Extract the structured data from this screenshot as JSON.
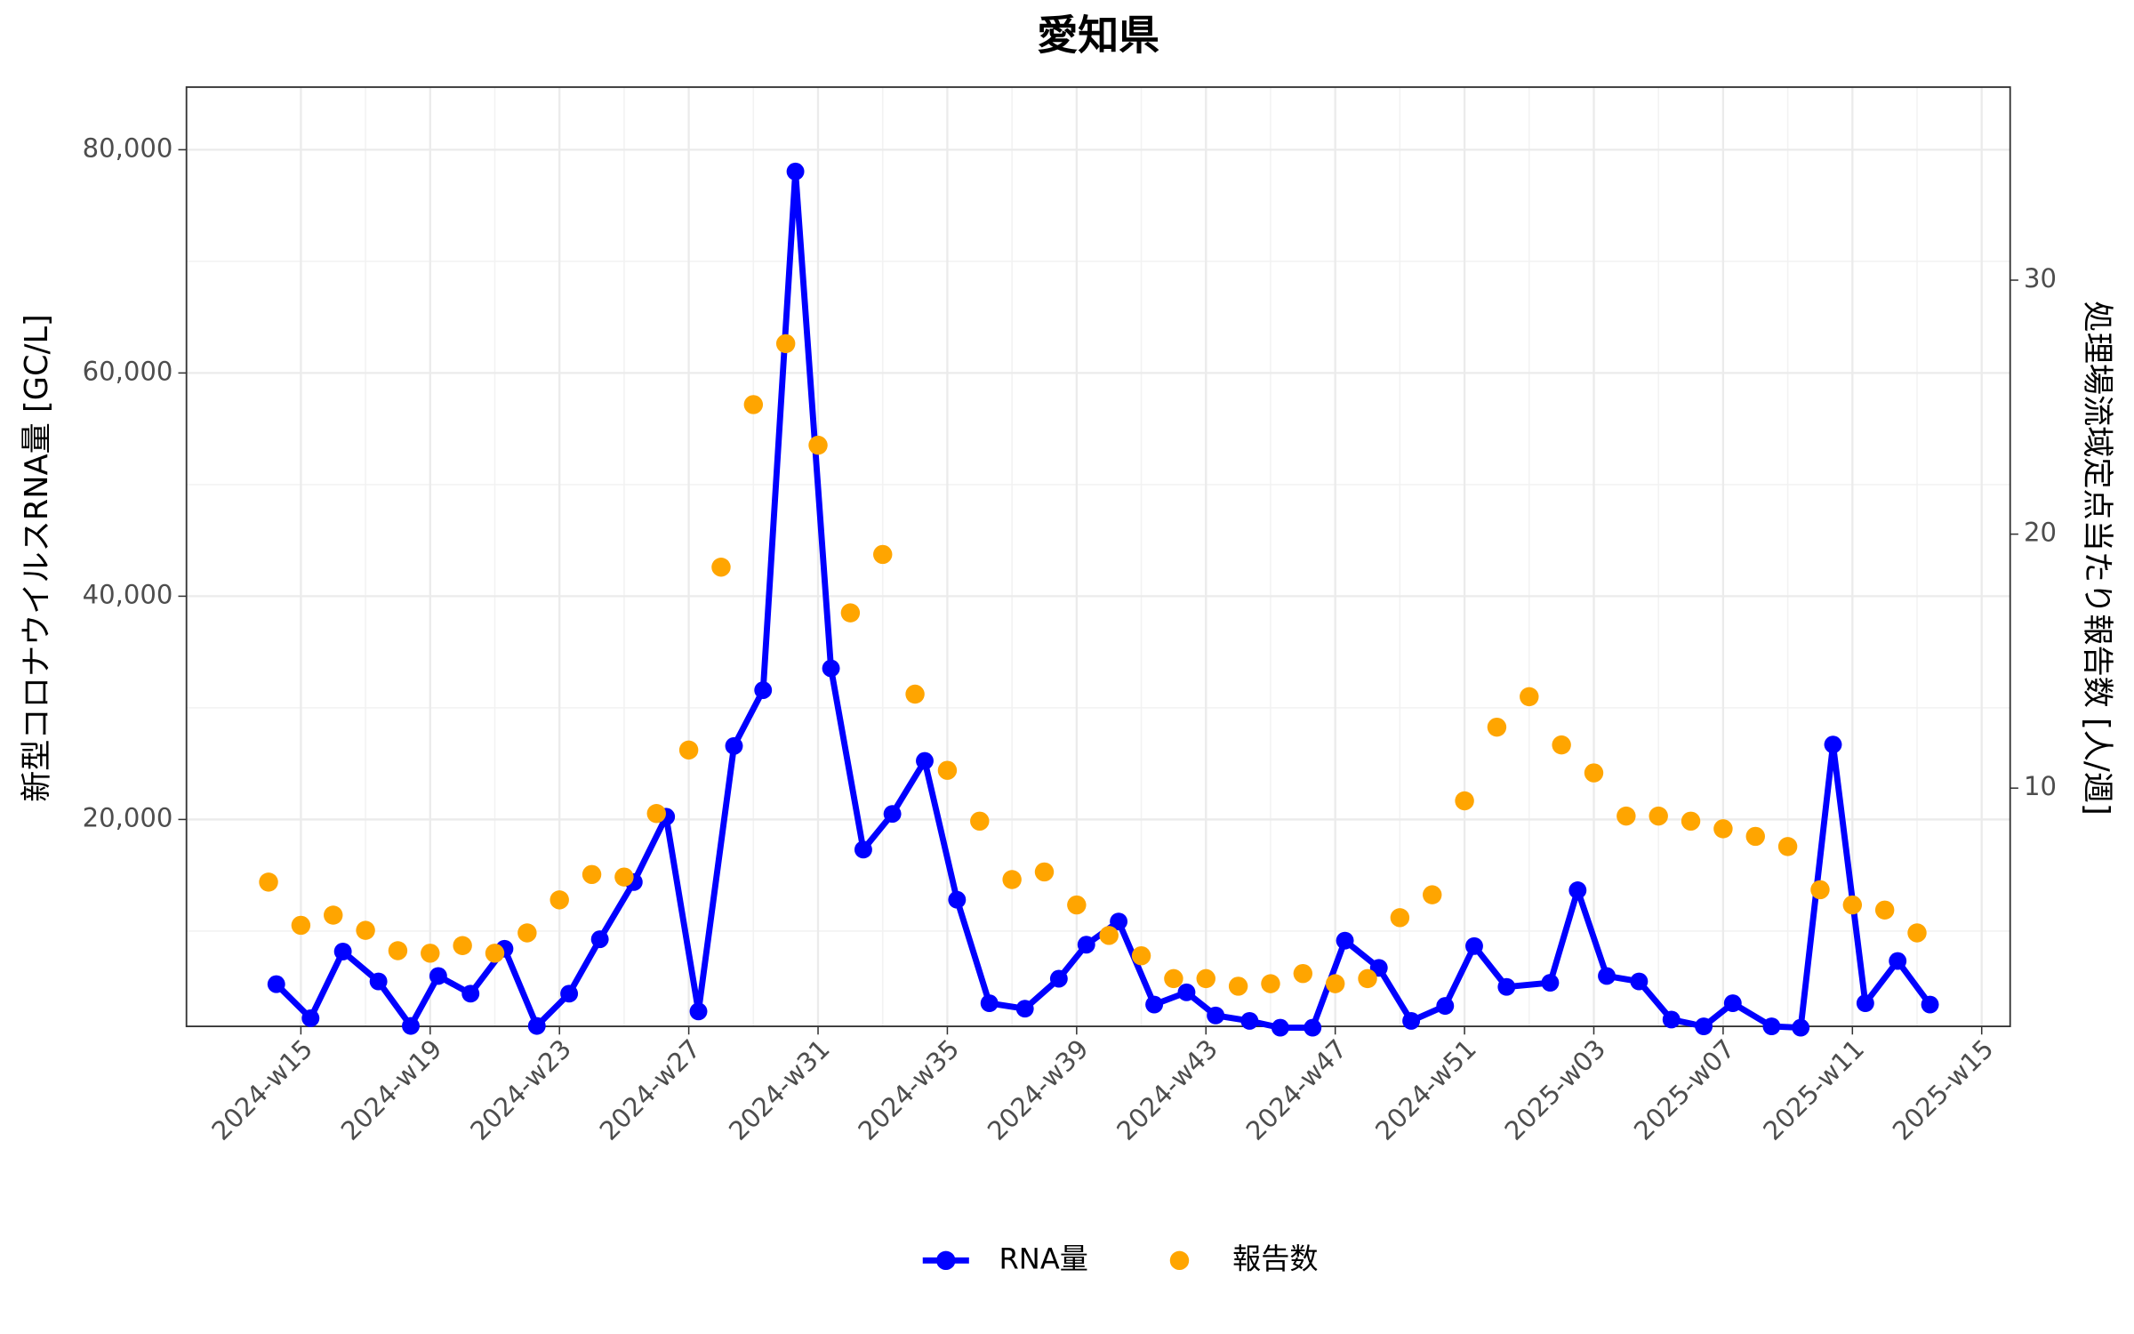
{
  "chart_data": {
    "type": "line",
    "title": "愛知県",
    "y_label": "新型コロナウイルスRNA量 [GC/L]",
    "y2_label": "処理場流域定点当たり報告数 [人/週]",
    "xlim": [
      11.46,
      67.88
    ],
    "xticks": [
      {
        "value": 15,
        "label": "2024-w15"
      },
      {
        "value": 19,
        "label": "2024-w19"
      },
      {
        "value": 23,
        "label": "2024-w23"
      },
      {
        "value": 27,
        "label": "2024-w27"
      },
      {
        "value": 31,
        "label": "2024-w31"
      },
      {
        "value": 35,
        "label": "2024-w35"
      },
      {
        "value": 39,
        "label": "2024-w39"
      },
      {
        "value": 43,
        "label": "2024-w43"
      },
      {
        "value": 47,
        "label": "2024-w47"
      },
      {
        "value": 51,
        "label": "2024-w51"
      },
      {
        "value": 55,
        "label": "2025-w03"
      },
      {
        "value": 59,
        "label": "2025-w07"
      },
      {
        "value": 63,
        "label": "2025-w11"
      },
      {
        "value": 67,
        "label": "2025-w15"
      }
    ],
    "ylim": [
      1463,
      85610
    ],
    "yticks": [
      {
        "value": 20000,
        "label": "20,000"
      },
      {
        "value": 40000,
        "label": "40,000"
      },
      {
        "value": 60000,
        "label": "60,000"
      },
      {
        "value": 80000,
        "label": "80,000"
      }
    ],
    "y2lim": [
      0.62,
      37.6
    ],
    "y2ticks": [
      10,
      20,
      30
    ],
    "grid": true,
    "series": [
      {
        "name": "RNA量",
        "color": "#0000ff",
        "mode": "line",
        "x": [
          14.24,
          15.3,
          16.3,
          17.4,
          18.4,
          19.25,
          20.25,
          21.3,
          22.3,
          23.3,
          24.25,
          25.3,
          26.3,
          27.3,
          28.4,
          29.3,
          30.3,
          31.4,
          32.4,
          33.3,
          34.3,
          35.3,
          36.3,
          37.4,
          38.45,
          39.3,
          40.3,
          41.4,
          42.4,
          43.3,
          44.35,
          45.3,
          46.3,
          47.3,
          48.35,
          49.35,
          50.4,
          51.3,
          52.3,
          53.65,
          54.5,
          55.4,
          56.4,
          57.4,
          58.4,
          59.3,
          60.5,
          61.4,
          62.4,
          63.4,
          64.4,
          65.4
        ],
        "values": [
          5244,
          2195,
          8170,
          5488,
          1500,
          5976,
          4390,
          8415,
          1500,
          4390,
          9268,
          14390,
          20244,
          2800,
          26585,
          31585,
          78049,
          33537,
          17300,
          20500,
          25244,
          12805,
          3537,
          3049,
          5732,
          8780,
          10854,
          3415,
          4512,
          2439,
          1951,
          1341,
          1341,
          9146,
          6707,
          1951,
          3293,
          8659,
          5000,
          5366,
          13659,
          5976,
          5488,
          2073,
          1463,
          3537,
          1463,
          1341,
          26707,
          3537,
          7317,
          3415
        ]
      },
      {
        "name": "報告数",
        "color": "#ffa500",
        "mode": "points",
        "axis": "y2",
        "x": [
          14,
          15,
          16,
          17,
          18,
          19,
          20,
          21,
          22,
          23,
          24,
          25,
          26,
          27,
          28,
          29,
          30,
          31,
          32,
          33,
          34,
          35,
          36,
          37,
          38,
          39,
          40,
          41,
          42,
          43,
          44,
          45,
          46,
          47,
          48,
          49,
          50,
          51,
          52,
          53,
          54,
          55,
          56,
          57,
          58,
          59,
          60,
          61,
          62,
          63,
          64,
          65
        ],
        "values": [
          6.3,
          4.6,
          5.0,
          4.4,
          3.6,
          3.5,
          3.8,
          3.5,
          4.3,
          5.6,
          6.6,
          6.5,
          9.0,
          11.5,
          18.7,
          25.1,
          27.5,
          23.5,
          16.9,
          19.2,
          13.7,
          10.7,
          8.7,
          6.4,
          6.7,
          5.4,
          4.2,
          3.4,
          2.5,
          2.5,
          2.2,
          2.3,
          2.7,
          2.3,
          2.5,
          4.9,
          5.8,
          9.5,
          12.4,
          13.6,
          11.7,
          10.6,
          8.9,
          8.9,
          8.7,
          8.4,
          8.1,
          7.7,
          6.0,
          5.4,
          5.2,
          4.3
        ]
      }
    ]
  }
}
